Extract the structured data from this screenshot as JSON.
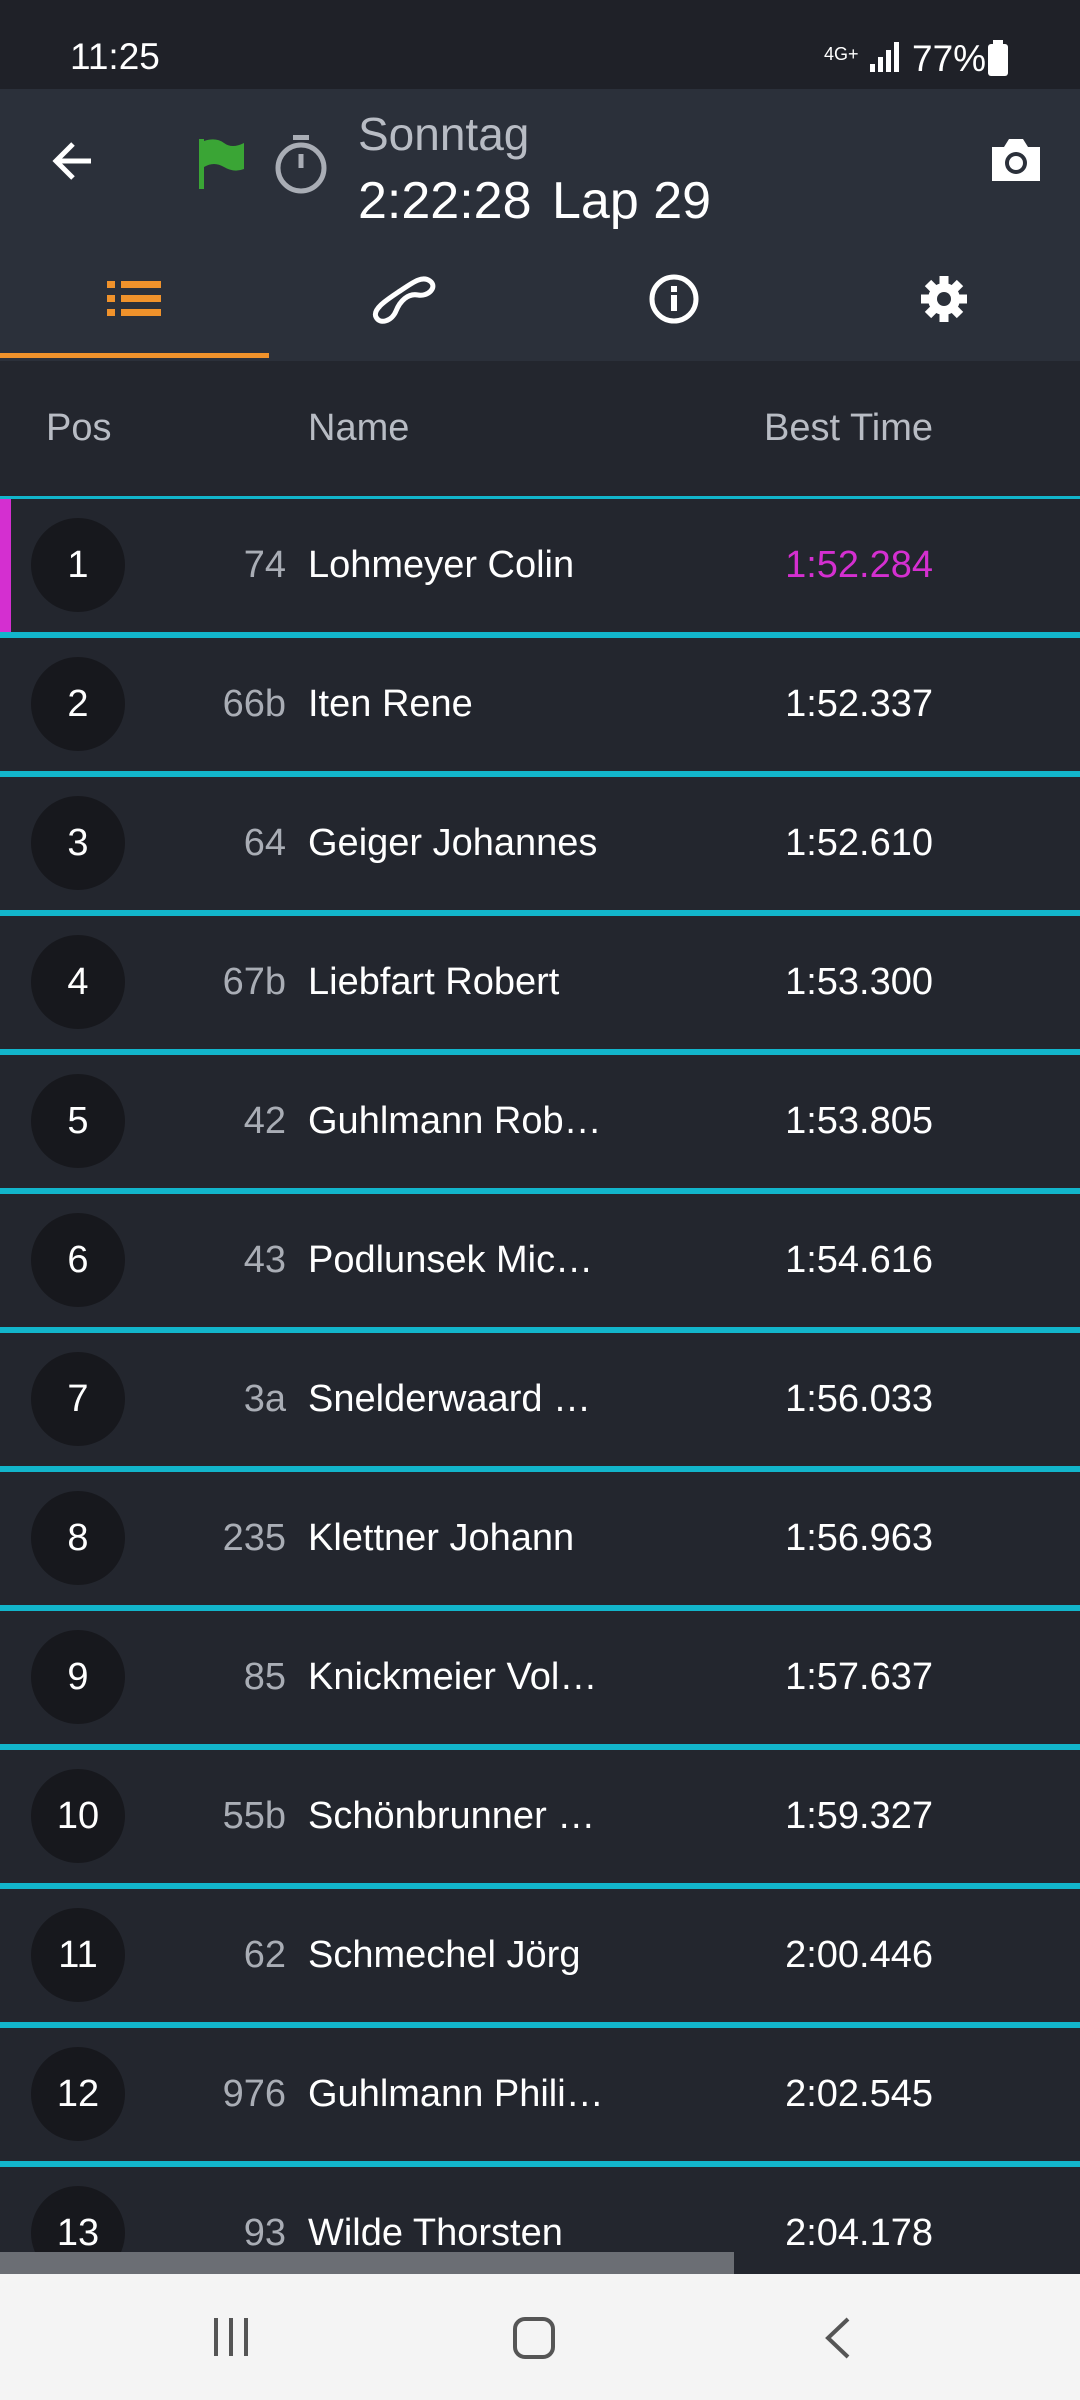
{
  "status_bar": {
    "time": "11:25",
    "network": "4G+",
    "battery": "77%"
  },
  "header": {
    "title": "Sonntag",
    "clock": "2:22:28",
    "lap": "Lap 29"
  },
  "table": {
    "columns": [
      "Pos",
      "Name",
      "Best Time"
    ],
    "rows": [
      [
        "1",
        "74",
        "Lohmeyer Colin",
        "1:52.284"
      ],
      [
        "2",
        "66b",
        "Iten Rene",
        "1:52.337"
      ],
      [
        "3",
        "64",
        "Geiger Johannes",
        "1:52.610"
      ],
      [
        "4",
        "67b",
        "Liebfart Robert",
        "1:53.300"
      ],
      [
        "5",
        "42",
        "Guhlmann Rob…",
        "1:53.805"
      ],
      [
        "6",
        "43",
        "Podlunsek Mic…",
        "1:54.616"
      ],
      [
        "7",
        "3a",
        "Snelderwaard …",
        "1:56.033"
      ],
      [
        "8",
        "235",
        "Klettner Johann",
        "1:56.963"
      ],
      [
        "9",
        "85",
        "Knickmeier Vol…",
        "1:57.637"
      ],
      [
        "10",
        "55b",
        "Schönbrunner …",
        "1:59.327"
      ],
      [
        "11",
        "62",
        "Schmechel Jörg",
        "2:00.446"
      ],
      [
        "12",
        "976",
        "Guhlmann Phili…",
        "2:02.545"
      ],
      [
        "13",
        "93",
        "Wilde Thorsten",
        "2:04.178"
      ]
    ]
  }
}
